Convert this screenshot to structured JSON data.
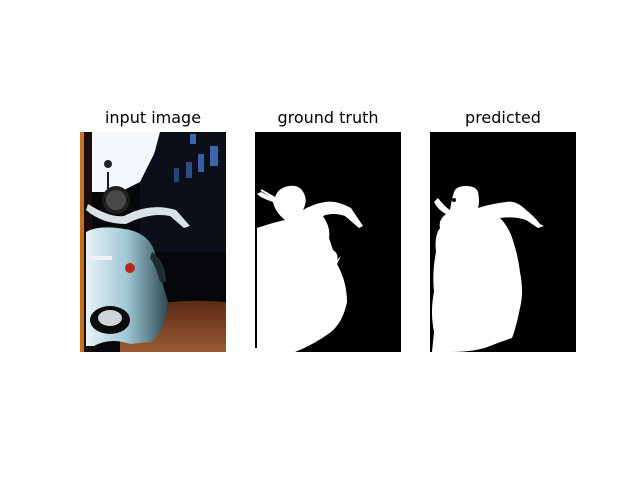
{
  "figure": {
    "panels": [
      {
        "title": "input image"
      },
      {
        "title": "ground truth"
      },
      {
        "title": "predicted"
      }
    ]
  },
  "colors": {
    "background": "#ffffff",
    "mask_background": "#000000",
    "mask_foreground": "#ffffff",
    "scooter_body": "#9fc7d3",
    "street_paving": "#8a4a28",
    "sky": "#ffffff"
  }
}
